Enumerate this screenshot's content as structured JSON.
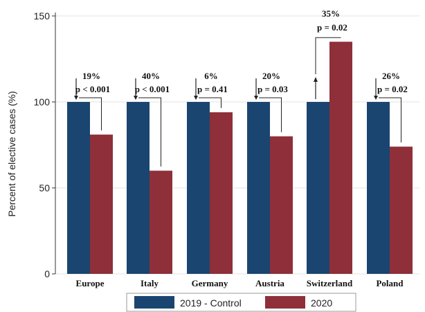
{
  "chart_data": {
    "type": "bar",
    "title": "",
    "xlabel": "",
    "ylabel": "Percent of elective cases (%)",
    "ylim": [
      0,
      150
    ],
    "yticks": [
      0,
      50,
      100,
      150
    ],
    "grid": "y",
    "categories": [
      "Europe",
      "Italy",
      "Germany",
      "Austria",
      "Switzerland",
      "Poland"
    ],
    "series": [
      {
        "name": "2019 - Control",
        "values": [
          100,
          100,
          100,
          100,
          100,
          100
        ],
        "color": "#1a4570"
      },
      {
        "name": "2020",
        "values": [
          81,
          60,
          94,
          80,
          135,
          74
        ],
        "color": "#8e2f39"
      }
    ],
    "annotations": [
      {
        "category": "Europe",
        "pct": "19%",
        "p": "p < 0.001",
        "direction": "down"
      },
      {
        "category": "Italy",
        "pct": "40%",
        "p": "p < 0.001",
        "direction": "down"
      },
      {
        "category": "Germany",
        "pct": "6%",
        "p": "p = 0.41",
        "direction": "down"
      },
      {
        "category": "Austria",
        "pct": "20%",
        "p": "p = 0.03",
        "direction": "down"
      },
      {
        "category": "Switzerland",
        "pct": "35%",
        "p": "p = 0.02",
        "direction": "up"
      },
      {
        "category": "Poland",
        "pct": "26%",
        "p": "p = 0.02",
        "direction": "down"
      }
    ],
    "legend_position": "bottom"
  }
}
